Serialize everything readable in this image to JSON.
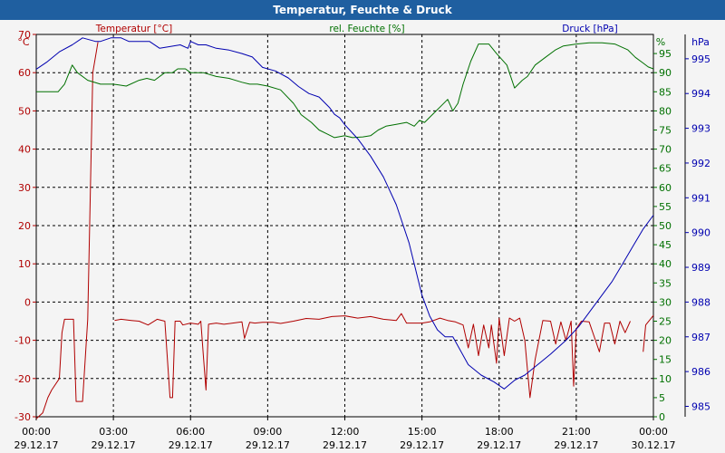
{
  "window": {
    "title": "Temperatur, Feuchte & Druck"
  },
  "colors": {
    "temperature": "#b00000",
    "humidity": "#007000",
    "pressure": "#0000b0",
    "grid": "#000000",
    "title_bg": "#1f5fa0"
  },
  "chart_data": {
    "type": "line",
    "title": "Temperatur, Feuchte & Druck",
    "grid": true,
    "x_ticks": [
      {
        "time": "00:00",
        "date": "29.12.17"
      },
      {
        "time": "03:00",
        "date": "29.12.17"
      },
      {
        "time": "06:00",
        "date": "29.12.17"
      },
      {
        "time": "09:00",
        "date": "29.12.17"
      },
      {
        "time": "12:00",
        "date": "29.12.17"
      },
      {
        "time": "15:00",
        "date": "29.12.17"
      },
      {
        "time": "18:00",
        "date": "29.12.17"
      },
      {
        "time": "21:00",
        "date": "29.12.17"
      },
      {
        "time": "00:00",
        "date": "30.12.17"
      }
    ],
    "axes": {
      "temperature": {
        "label": "Temperatur [°C]",
        "unit": "°C",
        "ylim": [
          -30,
          70
        ],
        "ticks": [
          "70",
          "60",
          "50",
          "40",
          "30",
          "20",
          "10",
          "0",
          "-10",
          "-20",
          "-30"
        ]
      },
      "humidity": {
        "label": "rel. Feuchte [%]",
        "unit": "%",
        "ylim": [
          0,
          100
        ],
        "ticks": [
          "95",
          "90",
          "85",
          "80",
          "75",
          "70",
          "65",
          "60",
          "55",
          "50",
          "45",
          "40",
          "35",
          "30",
          "25",
          "20",
          "15",
          "10",
          "5",
          "0"
        ]
      },
      "pressure": {
        "label": "Druck [hPa]",
        "unit": "hPa",
        "ylim": [
          984.7,
          995.7
        ],
        "ticks": [
          "995",
          "994",
          "993",
          "992",
          "991",
          "990",
          "989",
          "988",
          "987",
          "986",
          "985"
        ]
      }
    },
    "series": [
      {
        "name": "Temperatur [°C]",
        "axis": "temperature",
        "segments": [
          [
            [
              0.0,
              -30.5
            ],
            [
              0.25,
              -29
            ],
            [
              0.45,
              -25
            ],
            [
              0.6,
              -23
            ],
            [
              0.9,
              -20
            ],
            [
              1.0,
              -8
            ],
            [
              1.1,
              -4.5
            ],
            [
              1.45,
              -4.5
            ],
            [
              1.55,
              -26
            ],
            [
              1.8,
              -26
            ],
            [
              2.0,
              -4.5
            ],
            [
              2.2,
              60
            ],
            [
              2.4,
              68
            ]
          ],
          [
            [
              3.05,
              -4.8
            ],
            [
              3.3,
              -4.5
            ],
            [
              3.7,
              -4.8
            ],
            [
              4.0,
              -5
            ],
            [
              4.35,
              -6
            ],
            [
              4.7,
              -4.5
            ],
            [
              5.0,
              -5
            ],
            [
              5.2,
              -25
            ],
            [
              5.3,
              -25
            ],
            [
              5.4,
              -5
            ],
            [
              5.6,
              -5
            ],
            [
              5.7,
              -6
            ],
            [
              6.0,
              -5.5
            ],
            [
              6.3,
              -5.8
            ],
            [
              6.4,
              -5
            ],
            [
              6.5,
              -14
            ],
            [
              6.6,
              -23
            ],
            [
              6.7,
              -5.8
            ],
            [
              7.0,
              -5.5
            ],
            [
              7.3,
              -5.8
            ],
            [
              8.0,
              -5.2
            ],
            [
              8.1,
              -9.5
            ],
            [
              8.3,
              -5.3
            ],
            [
              8.5,
              -5.5
            ],
            [
              8.8,
              -5.3
            ],
            [
              9.2,
              -5.3
            ],
            [
              9.5,
              -5.6
            ],
            [
              10.0,
              -5.0
            ],
            [
              10.5,
              -4.3
            ],
            [
              11.0,
              -4.5
            ],
            [
              11.5,
              -3.8
            ],
            [
              12.0,
              -3.6
            ],
            [
              12.5,
              -4.2
            ],
            [
              13.0,
              -3.8
            ],
            [
              13.5,
              -4.5
            ],
            [
              14.0,
              -4.8
            ],
            [
              14.2,
              -3
            ],
            [
              14.4,
              -5.5
            ],
            [
              15.0,
              -5.5
            ],
            [
              15.3,
              -5.2
            ],
            [
              15.7,
              -4.2
            ],
            [
              16.0,
              -4.8
            ],
            [
              16.3,
              -5.2
            ],
            [
              16.6,
              -6
            ],
            [
              16.8,
              -12
            ],
            [
              17.0,
              -5.8
            ],
            [
              17.2,
              -14
            ],
            [
              17.4,
              -6
            ],
            [
              17.6,
              -12
            ],
            [
              17.7,
              -6
            ],
            [
              17.9,
              -16
            ],
            [
              18.0,
              -4.2
            ],
            [
              18.2,
              -14
            ],
            [
              18.4,
              -4.2
            ],
            [
              18.6,
              -5
            ],
            [
              18.8,
              -4.2
            ],
            [
              19.0,
              -10
            ],
            [
              19.2,
              -25
            ],
            [
              19.4,
              -15
            ],
            [
              19.7,
              -4.8
            ],
            [
              20.0,
              -5
            ],
            [
              20.2,
              -11
            ],
            [
              20.4,
              -5.2
            ],
            [
              20.6,
              -10
            ],
            [
              20.8,
              -5
            ],
            [
              20.9,
              -22
            ],
            [
              21.0,
              -7
            ],
            [
              21.2,
              -5
            ],
            [
              21.5,
              -5.2
            ],
            [
              21.9,
              -13
            ],
            [
              22.1,
              -5.5
            ],
            [
              22.3,
              -5.5
            ],
            [
              22.5,
              -11
            ],
            [
              22.7,
              -5
            ],
            [
              22.9,
              -8
            ],
            [
              23.1,
              -5
            ]
          ],
          [
            [
              23.6,
              -13
            ],
            [
              23.7,
              -6
            ],
            [
              24.0,
              -3.5
            ]
          ]
        ]
      },
      {
        "name": "rel. Feuchte [%]",
        "axis": "humidity",
        "segments": [
          [
            [
              0.0,
              85
            ],
            [
              0.5,
              85
            ],
            [
              0.85,
              85
            ],
            [
              1.1,
              87
            ],
            [
              1.4,
              92
            ],
            [
              1.6,
              90
            ],
            [
              2.0,
              88
            ],
            [
              2.5,
              87
            ],
            [
              3.0,
              87
            ],
            [
              3.5,
              86.5
            ],
            [
              4.0,
              88
            ],
            [
              4.3,
              88.5
            ],
            [
              4.6,
              88
            ],
            [
              5.0,
              90
            ],
            [
              5.3,
              90
            ],
            [
              5.5,
              91
            ],
            [
              5.8,
              91
            ],
            [
              6.0,
              90
            ],
            [
              6.5,
              90
            ],
            [
              7.0,
              89
            ],
            [
              7.5,
              88.5
            ],
            [
              8.0,
              87.5
            ],
            [
              8.3,
              87
            ],
            [
              8.6,
              87
            ],
            [
              9.0,
              86.5
            ],
            [
              9.5,
              85.5
            ],
            [
              10.0,
              82
            ],
            [
              10.3,
              79
            ],
            [
              10.7,
              77
            ],
            [
              11.0,
              75
            ],
            [
              11.3,
              74
            ],
            [
              11.6,
              73
            ],
            [
              12.0,
              73.5
            ],
            [
              12.3,
              73
            ],
            [
              12.7,
              73.2
            ],
            [
              13.0,
              73.5
            ],
            [
              13.3,
              75
            ],
            [
              13.6,
              76
            ],
            [
              14.0,
              76.5
            ],
            [
              14.4,
              77
            ],
            [
              14.7,
              76
            ],
            [
              14.9,
              77.5
            ],
            [
              15.1,
              77
            ],
            [
              15.4,
              79
            ],
            [
              15.7,
              81
            ],
            [
              16.0,
              83
            ],
            [
              16.2,
              80
            ],
            [
              16.4,
              82
            ],
            [
              16.6,
              87
            ],
            [
              16.9,
              93
            ],
            [
              17.2,
              97.5
            ],
            [
              17.6,
              97.5
            ],
            [
              17.9,
              95
            ],
            [
              18.3,
              92
            ],
            [
              18.6,
              86
            ],
            [
              18.9,
              88
            ],
            [
              19.1,
              89
            ],
            [
              19.4,
              92
            ],
            [
              19.8,
              94
            ],
            [
              20.2,
              96
            ],
            [
              20.5,
              97
            ],
            [
              21.0,
              97.5
            ],
            [
              21.5,
              97.8
            ],
            [
              22.0,
              97.8
            ],
            [
              22.5,
              97.5
            ],
            [
              23.0,
              96
            ],
            [
              23.3,
              94
            ],
            [
              23.6,
              92.5
            ],
            [
              23.8,
              91.5
            ],
            [
              24.0,
              91
            ]
          ]
        ]
      },
      {
        "name": "Druck [hPa]",
        "axis": "pressure",
        "segments": [
          [
            [
              0.0,
              994.7
            ],
            [
              0.4,
              994.9
            ],
            [
              0.9,
              995.2
            ],
            [
              1.4,
              995.4
            ],
            [
              1.8,
              995.6
            ],
            [
              2.3,
              995.5
            ],
            [
              2.5,
              995.5
            ],
            [
              2.9,
              995.6
            ],
            [
              3.3,
              995.6
            ],
            [
              3.6,
              995.5
            ],
            [
              4.0,
              995.5
            ],
            [
              4.4,
              995.5
            ],
            [
              4.8,
              995.3
            ],
            [
              5.2,
              995.35
            ],
            [
              5.6,
              995.4
            ],
            [
              5.9,
              995.3
            ],
            [
              6.0,
              995.5
            ],
            [
              6.3,
              995.4
            ],
            [
              6.6,
              995.4
            ],
            [
              7.0,
              995.3
            ],
            [
              7.5,
              995.25
            ],
            [
              8.0,
              995.15
            ],
            [
              8.4,
              995.05
            ],
            [
              8.8,
              994.75
            ],
            [
              9.3,
              994.65
            ],
            [
              9.8,
              994.45
            ],
            [
              10.2,
              994.2
            ],
            [
              10.6,
              994.0
            ],
            [
              11.0,
              993.9
            ],
            [
              11.4,
              993.6
            ],
            [
              11.6,
              993.4
            ],
            [
              11.8,
              993.3
            ],
            [
              12.0,
              993.1
            ],
            [
              12.5,
              992.7
            ],
            [
              13.0,
              992.2
            ],
            [
              13.5,
              991.6
            ],
            [
              14.0,
              990.8
            ],
            [
              14.5,
              989.7
            ],
            [
              15.0,
              988.2
            ],
            [
              15.3,
              987.6
            ],
            [
              15.6,
              987.2
            ],
            [
              15.9,
              987.0
            ],
            [
              16.2,
              987.0
            ],
            [
              16.5,
              986.6
            ],
            [
              16.8,
              986.2
            ],
            [
              17.3,
              985.9
            ],
            [
              17.8,
              985.7
            ],
            [
              18.2,
              985.5
            ],
            [
              18.6,
              985.75
            ],
            [
              19.0,
              985.9
            ],
            [
              19.5,
              986.2
            ],
            [
              20.0,
              986.5
            ],
            [
              20.6,
              986.9
            ],
            [
              21.1,
              987.3
            ],
            [
              21.6,
              987.8
            ],
            [
              22.0,
              988.2
            ],
            [
              22.4,
              988.6
            ],
            [
              22.8,
              989.1
            ],
            [
              23.2,
              989.6
            ],
            [
              23.6,
              990.1
            ],
            [
              24.0,
              990.5
            ]
          ]
        ]
      }
    ]
  }
}
